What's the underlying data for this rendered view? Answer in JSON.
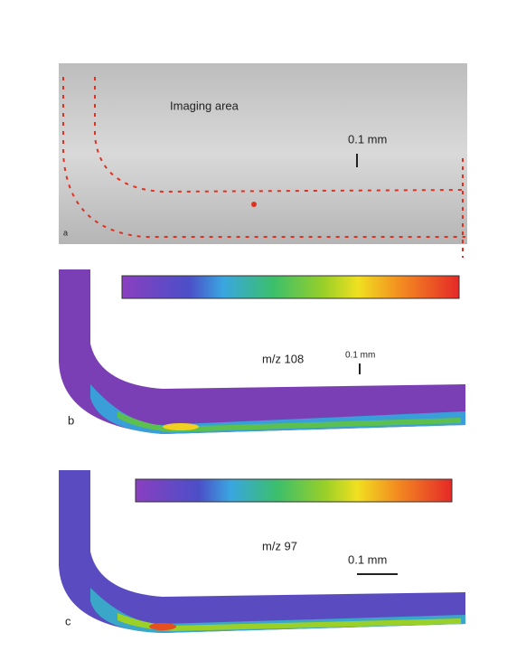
{
  "panels": [
    {
      "label": "a",
      "annotation": "Imaging area",
      "scale_bar": "0.1 mm"
    },
    {
      "label": "b",
      "ion": "m/z 108",
      "scale_bar": "0.1 mm"
    },
    {
      "label": "c",
      "ion": "m/z 97",
      "scale_bar": "0.1 mm"
    }
  ]
}
